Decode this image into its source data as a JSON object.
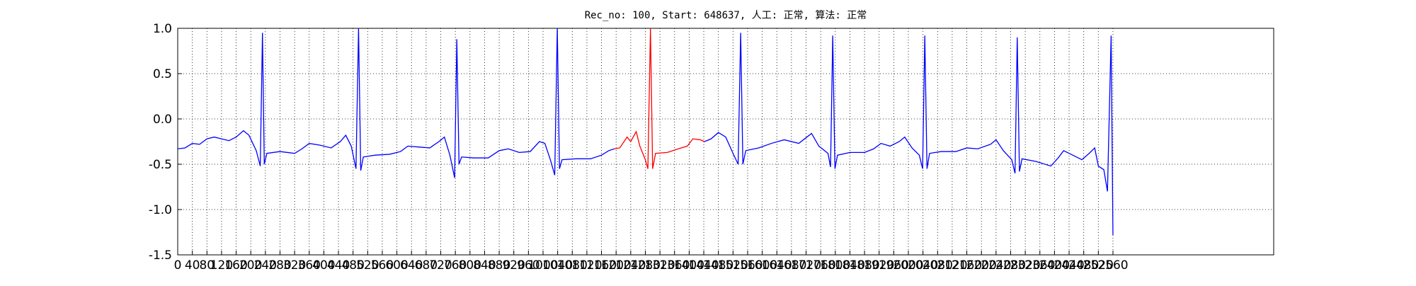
{
  "chart_data": {
    "type": "line",
    "title": "Rec_no: 100, Start: 648637, 人工: 正常, 算法: 正常",
    "x": [
      0,
      20,
      40,
      60,
      80,
      100,
      120,
      140,
      160,
      180,
      195,
      215,
      226,
      232,
      237,
      244,
      280,
      320,
      340,
      360,
      390,
      420,
      445,
      460,
      475,
      488,
      495,
      501,
      508,
      540,
      580,
      610,
      630,
      660,
      690,
      715,
      730,
      745,
      758,
      764,
      770,
      777,
      810,
      850,
      880,
      905,
      935,
      965,
      990,
      1005,
      1020,
      1032,
      1039,
      1045,
      1052,
      1090,
      1130,
      1160,
      1180,
      1195,
      1210,
      1230,
      1240,
      1255,
      1265,
      1280,
      1287,
      1294,
      1300,
      1308,
      1340,
      1370,
      1395,
      1410,
      1430,
      1442,
      1460,
      1480,
      1500,
      1520,
      1534,
      1541,
      1547,
      1555,
      1590,
      1625,
      1660,
      1700,
      1735,
      1755,
      1780,
      1787,
      1793,
      1799,
      1806,
      1840,
      1880,
      1905,
      1925,
      1950,
      1975,
      1990,
      2010,
      2030,
      2039,
      2045,
      2051,
      2058,
      2090,
      2130,
      2160,
      2190,
      2225,
      2240,
      2260,
      2283,
      2292,
      2298,
      2304,
      2311,
      2350,
      2390,
      2410,
      2425,
      2450,
      2475,
      2495,
      2510,
      2520,
      2535,
      2545,
      2555,
      2560
    ],
    "series": [
      {
        "color": "#0000ff",
        "values": [
          -0.33,
          -0.32,
          -0.27,
          -0.28,
          -0.22,
          -0.2,
          -0.22,
          -0.24,
          -0.2,
          -0.13,
          -0.18,
          -0.35,
          -0.52,
          0.95,
          -0.5,
          -0.38,
          -0.36,
          -0.38,
          -0.33,
          -0.27,
          -0.29,
          -0.32,
          -0.25,
          -0.18,
          -0.3,
          -0.55,
          1.0,
          -0.57,
          -0.42,
          -0.4,
          -0.39,
          -0.36,
          -0.3,
          -0.31,
          -0.32,
          -0.25,
          -0.2,
          -0.4,
          -0.65,
          0.88,
          -0.5,
          -0.42,
          -0.43,
          -0.43,
          -0.35,
          -0.33,
          -0.37,
          -0.36,
          -0.25,
          -0.27,
          -0.45,
          -0.62,
          1.0,
          -0.55,
          -0.45,
          -0.44,
          -0.44,
          -0.4,
          -0.35,
          -0.33,
          null,
          null,
          null,
          null,
          null,
          null,
          null,
          null,
          null,
          null,
          null,
          null,
          null,
          null,
          null,
          -0.25,
          -0.22,
          -0.15,
          -0.2,
          -0.38,
          -0.5,
          0.95,
          -0.5,
          -0.35,
          -0.32,
          -0.27,
          -0.23,
          -0.27,
          -0.16,
          -0.3,
          -0.38,
          -0.53,
          0.92,
          -0.55,
          -0.4,
          -0.37,
          -0.37,
          -0.33,
          -0.27,
          -0.3,
          -0.25,
          -0.2,
          -0.32,
          -0.4,
          -0.55,
          0.92,
          -0.55,
          -0.38,
          -0.36,
          -0.36,
          -0.32,
          -0.33,
          -0.28,
          -0.23,
          -0.35,
          -0.45,
          -0.6,
          0.9,
          -0.58,
          -0.44,
          -0.47,
          -0.52,
          -0.43,
          -0.35,
          -0.4,
          -0.45,
          -0.38,
          -0.32,
          -0.52,
          -0.56,
          -0.8,
          0.92,
          -1.28
        ]
      },
      {
        "color": "#ff0000",
        "values": [
          null,
          null,
          null,
          null,
          null,
          null,
          null,
          null,
          null,
          null,
          null,
          null,
          null,
          null,
          null,
          null,
          null,
          null,
          null,
          null,
          null,
          null,
          null,
          null,
          null,
          null,
          null,
          null,
          null,
          null,
          null,
          null,
          null,
          null,
          null,
          null,
          null,
          null,
          null,
          null,
          null,
          null,
          null,
          null,
          null,
          null,
          null,
          null,
          null,
          null,
          null,
          null,
          null,
          null,
          null,
          null,
          null,
          null,
          null,
          -0.33,
          -0.32,
          -0.2,
          -0.25,
          -0.14,
          -0.3,
          -0.45,
          -0.55,
          1.0,
          -0.55,
          -0.38,
          -0.37,
          -0.33,
          -0.3,
          -0.22,
          -0.23,
          -0.25,
          null,
          null,
          null,
          null,
          null,
          null,
          null,
          null,
          null,
          null,
          null,
          null,
          null,
          null,
          null,
          null,
          null,
          null,
          null,
          null,
          null,
          null,
          null,
          null,
          null,
          null,
          null,
          null,
          null,
          null,
          null,
          null,
          null,
          null,
          null,
          null,
          null,
          null,
          null,
          null,
          null,
          null,
          null,
          null,
          null,
          null,
          null,
          null,
          null,
          null,
          null,
          null,
          null,
          null,
          null,
          null,
          null
        ]
      }
    ],
    "xlim": [
      0,
      3000
    ],
    "xticks": [
      0,
      40,
      80,
      120,
      160,
      200,
      240,
      280,
      320,
      360,
      400,
      440,
      480,
      520,
      560,
      600,
      640,
      680,
      720,
      760,
      800,
      840,
      880,
      920,
      960,
      1000,
      1040,
      1080,
      1120,
      1160,
      1200,
      1240,
      1280,
      1320,
      1360,
      1400,
      1440,
      1480,
      1520,
      1560,
      1600,
      1640,
      1680,
      1720,
      1760,
      1800,
      1840,
      1880,
      1920,
      1960,
      2000,
      2040,
      2080,
      2120,
      2160,
      2200,
      2240,
      2280,
      2320,
      2360,
      2400,
      2440,
      2480,
      2520,
      2560
    ],
    "ylim": [
      -1.5,
      1.0
    ],
    "yticks": [
      {
        "value": -1.5,
        "label": "-1.5"
      },
      {
        "value": -1.0,
        "label": "-1.0"
      },
      {
        "value": -0.5,
        "label": "-0.5"
      },
      {
        "value": 0.0,
        "label": "0.0"
      },
      {
        "value": 0.5,
        "label": "0.5"
      },
      {
        "value": 1.0,
        "label": "1.0"
      }
    ],
    "grid": true
  }
}
